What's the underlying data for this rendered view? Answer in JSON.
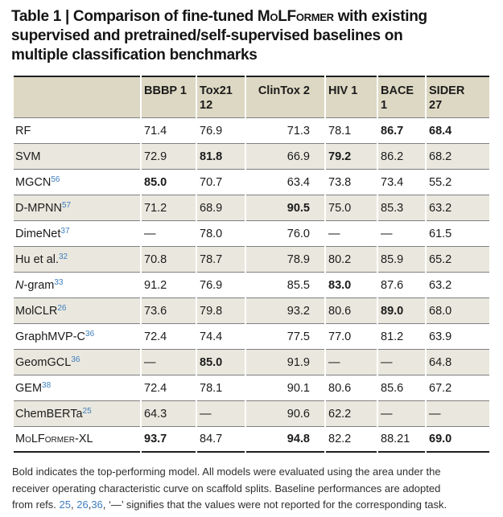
{
  "colors": {
    "accent_blue": "#3d7dbd",
    "header_bg": "#ddd8c3",
    "stripe_bg": "#eae8de",
    "rule_dark": "#1f1f1f",
    "rule_gray": "#7e7f82"
  },
  "title": {
    "lines": [
      {
        "parts": [
          {
            "t": "Table 1 | Comparison of fine-tuned "
          },
          {
            "t": "MoLFormer",
            "style": "smallcaps"
          },
          {
            "t": " with existing"
          }
        ]
      },
      {
        "parts": [
          {
            "t": "supervised and pretrained/self-supervised baselines on"
          }
        ]
      },
      {
        "parts": [
          {
            "t": "multiple classification benchmarks"
          }
        ]
      }
    ]
  },
  "table": {
    "header": [
      {
        "label": "BBBP 1",
        "sub": ""
      },
      {
        "label": "Tox21",
        "sub": "12"
      },
      {
        "label": "ClinTox 2",
        "sub": ""
      },
      {
        "label": "HIV 1",
        "sub": ""
      },
      {
        "label": "BACE 1",
        "sub": ""
      },
      {
        "label": "SIDER",
        "sub": "27"
      }
    ],
    "rows": [
      {
        "model": [
          {
            "t": "RF",
            "style": ""
          }
        ],
        "ref": "",
        "values": [
          {
            "v": "71.4",
            "bold": false
          },
          {
            "v": "76.9",
            "bold": false
          },
          {
            "v": "71.3",
            "bold": false
          },
          {
            "v": "78.1",
            "bold": false
          },
          {
            "v": "86.7",
            "bold": true
          },
          {
            "v": "68.4",
            "bold": true
          }
        ]
      },
      {
        "model": [
          {
            "t": "SVM",
            "style": ""
          }
        ],
        "ref": "",
        "values": [
          {
            "v": "72.9",
            "bold": false
          },
          {
            "v": "81.8",
            "bold": true
          },
          {
            "v": "66.9",
            "bold": false
          },
          {
            "v": "79.2",
            "bold": true
          },
          {
            "v": "86.2",
            "bold": false
          },
          {
            "v": "68.2",
            "bold": false
          }
        ]
      },
      {
        "model": [
          {
            "t": "MGCN",
            "style": ""
          }
        ],
        "ref": "56",
        "values": [
          {
            "v": "85.0",
            "bold": true
          },
          {
            "v": "70.7",
            "bold": false
          },
          {
            "v": "63.4",
            "bold": false
          },
          {
            "v": "73.8",
            "bold": false
          },
          {
            "v": "73.4",
            "bold": false
          },
          {
            "v": "55.2",
            "bold": false
          }
        ]
      },
      {
        "model": [
          {
            "t": "D-MPNN",
            "style": ""
          }
        ],
        "ref": "57",
        "values": [
          {
            "v": "71.2",
            "bold": false
          },
          {
            "v": "68.9",
            "bold": false
          },
          {
            "v": "90.5",
            "bold": true
          },
          {
            "v": "75.0",
            "bold": false
          },
          {
            "v": "85.3",
            "bold": false
          },
          {
            "v": "63.2",
            "bold": false
          }
        ]
      },
      {
        "model": [
          {
            "t": "DimeNet",
            "style": ""
          }
        ],
        "ref": "37",
        "values": [
          {
            "v": "—",
            "bold": false
          },
          {
            "v": "78.0",
            "bold": false
          },
          {
            "v": "76.0",
            "bold": false
          },
          {
            "v": "—",
            "bold": false
          },
          {
            "v": "—",
            "bold": false
          },
          {
            "v": "61.5",
            "bold": false
          }
        ]
      },
      {
        "model": [
          {
            "t": "Hu et al.",
            "style": ""
          }
        ],
        "ref": "32",
        "values": [
          {
            "v": "70.8",
            "bold": false
          },
          {
            "v": "78.7",
            "bold": false
          },
          {
            "v": "78.9",
            "bold": false
          },
          {
            "v": "80.2",
            "bold": false
          },
          {
            "v": "85.9",
            "bold": false
          },
          {
            "v": "65.2",
            "bold": false
          }
        ]
      },
      {
        "model": [
          {
            "t": "N",
            "style": "italic"
          },
          {
            "t": "-gram",
            "style": ""
          }
        ],
        "ref": "33",
        "values": [
          {
            "v": "91.2",
            "bold": false
          },
          {
            "v": "76.9",
            "bold": false
          },
          {
            "v": "85.5",
            "bold": false
          },
          {
            "v": "83.0",
            "bold": true
          },
          {
            "v": "87.6",
            "bold": false
          },
          {
            "v": "63.2",
            "bold": false
          }
        ]
      },
      {
        "model": [
          {
            "t": "MolCLR",
            "style": ""
          }
        ],
        "ref": "26",
        "values": [
          {
            "v": "73.6",
            "bold": false
          },
          {
            "v": "79.8",
            "bold": false
          },
          {
            "v": "93.2",
            "bold": false
          },
          {
            "v": "80.6",
            "bold": false
          },
          {
            "v": "89.0",
            "bold": true
          },
          {
            "v": "68.0",
            "bold": false
          }
        ]
      },
      {
        "model": [
          {
            "t": "GraphMVP-C",
            "style": ""
          }
        ],
        "ref": "36",
        "values": [
          {
            "v": "72.4",
            "bold": false
          },
          {
            "v": "74.4",
            "bold": false
          },
          {
            "v": "77.5",
            "bold": false
          },
          {
            "v": "77.0",
            "bold": false
          },
          {
            "v": "81.2",
            "bold": false
          },
          {
            "v": "63.9",
            "bold": false
          }
        ]
      },
      {
        "model": [
          {
            "t": "GeomGCL",
            "style": ""
          }
        ],
        "ref": "36",
        "values": [
          {
            "v": "—",
            "bold": false
          },
          {
            "v": "85.0",
            "bold": true
          },
          {
            "v": "91.9",
            "bold": false
          },
          {
            "v": "—",
            "bold": false
          },
          {
            "v": "—",
            "bold": false
          },
          {
            "v": "64.8",
            "bold": false
          }
        ]
      },
      {
        "model": [
          {
            "t": "GEM",
            "style": ""
          }
        ],
        "ref": "38",
        "values": [
          {
            "v": "72.4",
            "bold": false
          },
          {
            "v": "78.1",
            "bold": false
          },
          {
            "v": "90.1",
            "bold": false
          },
          {
            "v": "80.6",
            "bold": false
          },
          {
            "v": "85.6",
            "bold": false
          },
          {
            "v": "67.2",
            "bold": false
          }
        ]
      },
      {
        "model": [
          {
            "t": "ChemBERTa",
            "style": ""
          }
        ],
        "ref": "25",
        "values": [
          {
            "v": "64.3",
            "bold": false
          },
          {
            "v": "—",
            "bold": false
          },
          {
            "v": "90.6",
            "bold": false
          },
          {
            "v": "62.2",
            "bold": false
          },
          {
            "v": "—",
            "bold": false
          },
          {
            "v": "—",
            "bold": false
          }
        ]
      },
      {
        "model": [
          {
            "t": "MoLFormer-XL",
            "style": "smallcaps"
          }
        ],
        "ref": "",
        "values": [
          {
            "v": "93.7",
            "bold": true
          },
          {
            "v": "84.7",
            "bold": false
          },
          {
            "v": "94.8",
            "bold": true
          },
          {
            "v": "82.2",
            "bold": false
          },
          {
            "v": "88.21",
            "bold": false
          },
          {
            "v": "69.0",
            "bold": true
          }
        ]
      }
    ]
  },
  "footnote": {
    "lines": [
      {
        "parts": [
          {
            "t": "Bold indicates the top-performing model. All models were evaluated using the area under the"
          }
        ]
      },
      {
        "parts": [
          {
            "t": "receiver operating characteristic curve on scaffold splits. Baseline performances are adopted"
          }
        ]
      },
      {
        "parts": [
          {
            "t": "from refs. "
          },
          {
            "t": "25",
            "link": true
          },
          {
            "t": ", "
          },
          {
            "t": "26",
            "link": true
          },
          {
            "t": ","
          },
          {
            "t": "36",
            "link": true
          },
          {
            "t": ", ‘—’ signifies that the values were not reported for the corresponding task."
          }
        ]
      }
    ]
  }
}
